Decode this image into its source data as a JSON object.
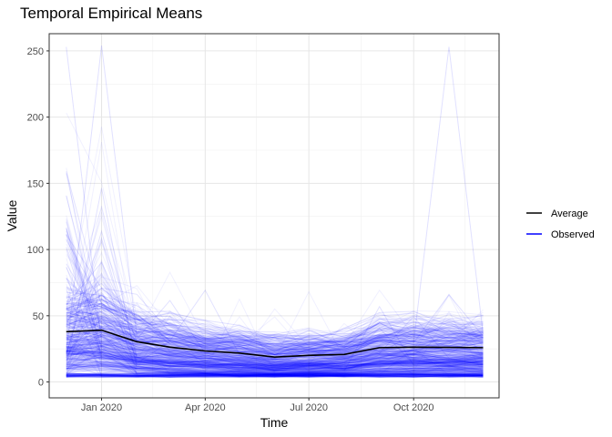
{
  "chart_data": {
    "type": "line",
    "title": "Temporal Empirical Means",
    "xlabel": "Time",
    "ylabel": "Value",
    "x": [
      "2019-12-01",
      "2020-01-01",
      "2020-02-01",
      "2020-03-01",
      "2020-04-01",
      "2020-05-01",
      "2020-06-01",
      "2020-07-01",
      "2020-08-01",
      "2020-09-01",
      "2020-10-01",
      "2020-11-01",
      "2020-12-01"
    ],
    "xlim": [
      "2019-11-16",
      "2020-12-15"
    ],
    "ylim": [
      -12,
      263
    ],
    "xticks": [
      {
        "date": "2020-01-01",
        "label": "Jan 2020"
      },
      {
        "date": "2020-04-01",
        "label": "Apr 2020"
      },
      {
        "date": "2020-07-01",
        "label": "Jul 2020"
      },
      {
        "date": "2020-10-01",
        "label": "Oct 2020"
      }
    ],
    "yticks": [
      0,
      50,
      100,
      150,
      200,
      250
    ],
    "grid": true,
    "legend_position": "right",
    "series": [
      {
        "name": "Average",
        "color": "#000000",
        "values": [
          38,
          39.1,
          30.4,
          26.3,
          23.4,
          21.8,
          18.8,
          20.1,
          20.8,
          25.9,
          26.3,
          26.1,
          25.9
        ]
      },
      {
        "name": "Observed",
        "color": "#0000FF",
        "opacity": 0.06,
        "range": [
          2,
          254
        ],
        "peak_values": [
          {
            "date": "2020-01-01",
            "value": 254
          },
          {
            "date": "2020-11-01",
            "value": 253
          },
          {
            "date": "2019-12-01",
            "value": 253
          }
        ]
      }
    ]
  }
}
